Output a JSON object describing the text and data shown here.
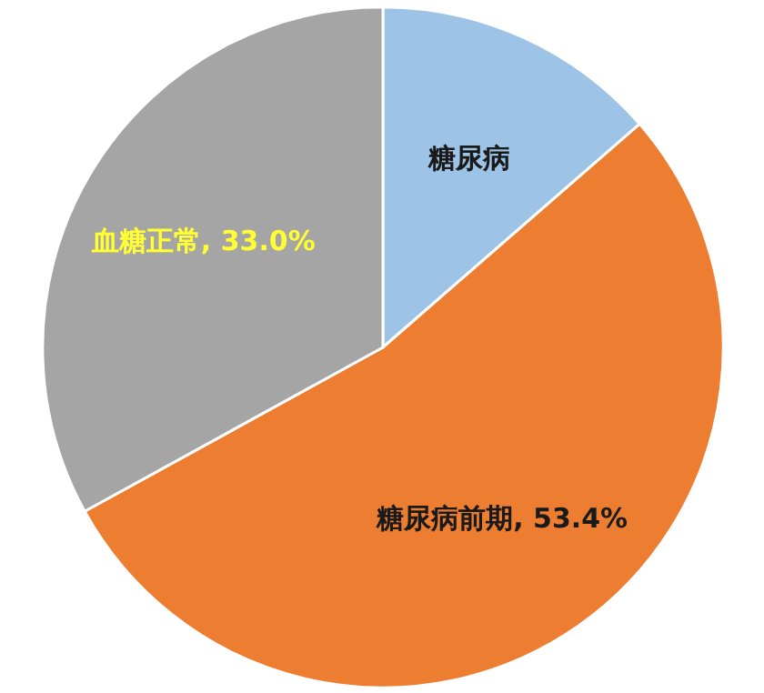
{
  "chart_data": {
    "type": "pie",
    "categories": [
      "糖尿病",
      "糖尿病前期",
      "血糖正常"
    ],
    "values": [
      13.6,
      53.4,
      33.0
    ],
    "colors": [
      "#9dc3e6",
      "#ed7d31",
      "#a5a5a5"
    ],
    "value_labels": [
      null,
      "53.4%",
      "33.0%"
    ]
  }
}
